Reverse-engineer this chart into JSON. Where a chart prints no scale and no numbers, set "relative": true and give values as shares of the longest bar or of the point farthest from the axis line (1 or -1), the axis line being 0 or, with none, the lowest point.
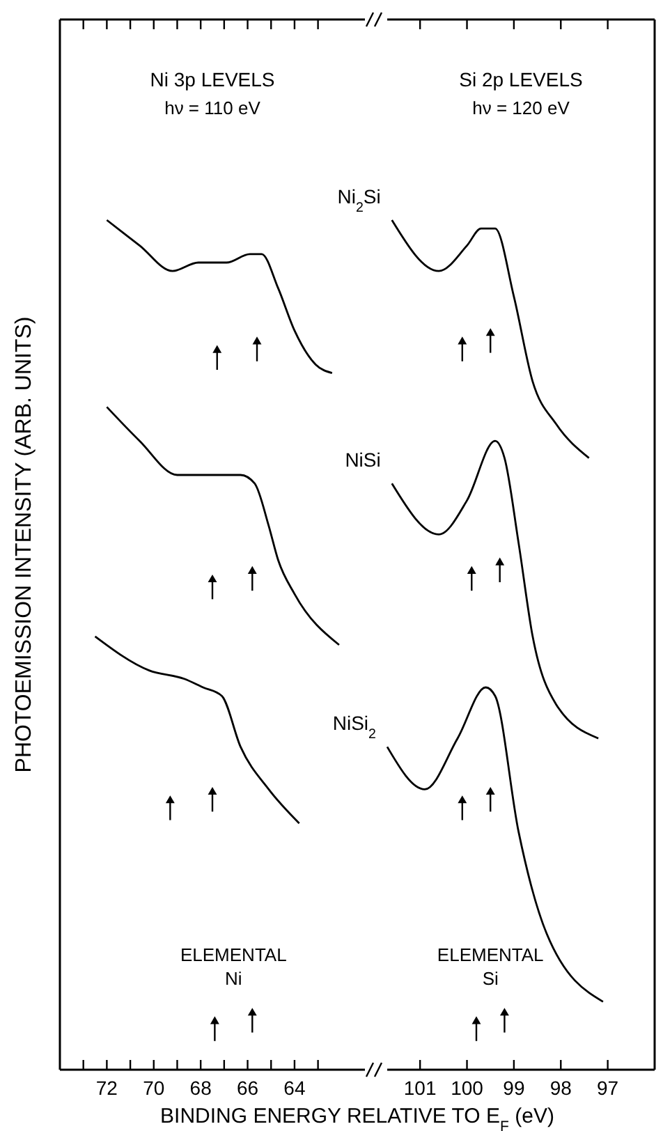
{
  "chart_data": [
    {
      "type": "line",
      "title": "Ni 3p LEVELS",
      "subtitle": "hν = 110 eV",
      "xlabel": "BINDING ENERGY RELATIVE TO E$_{F}$ (eV)",
      "ylabel": "PHOTOEMISSION INTENSITY (ARB. UNITS)",
      "relative": true,
      "legend": false,
      "grid": false,
      "marker": "none",
      "line_style": "solid",
      "tick_labels": "x",
      "xlim": [
        74,
        61
      ],
      "xticks": [
        {
          "value": 73,
          "label": null
        },
        72,
        {
          "value": 71,
          "label": null
        },
        70,
        {
          "value": 69,
          "label": null
        },
        68,
        {
          "value": 67,
          "label": null
        },
        66,
        {
          "value": 65,
          "label": null
        },
        64,
        {
          "value": 63,
          "label": null
        }
      ],
      "series": [
        {
          "color": "#000000",
          "x": [
            72.0,
            70.6,
            69.2,
            68.1,
            66.9,
            65.9,
            65.4,
            64.7,
            64.0,
            63.1,
            62.4
          ],
          "values": [
            1.0,
            0.97,
            0.94,
            0.95,
            0.95,
            0.96,
            0.96,
            0.92,
            0.87,
            0.83,
            0.82
          ]
        },
        {
          "color": "#000000",
          "x": [
            72.0,
            70.6,
            69.0,
            67.7,
            66.3,
            65.7,
            65.1,
            64.7,
            64.0,
            62.1
          ],
          "values": [
            0.78,
            0.74,
            0.7,
            0.7,
            0.7,
            0.69,
            0.64,
            0.6,
            0.56,
            0.5
          ]
        },
        {
          "color": "#000000",
          "x": [
            72.5,
            70.2,
            68.7,
            67.9,
            67.1,
            66.3,
            65.1,
            63.8
          ],
          "values": [
            0.51,
            0.47,
            0.46,
            0.45,
            0.44,
            0.38,
            0.33,
            0.29
          ]
        },
        {
          "type": "scatter",
          "marker": "triangle",
          "color": "#000000",
          "x": [
            67.3,
            65.6,
            67.5,
            65.8,
            69.3,
            67.5,
            67.4,
            65.8
          ],
          "values": [
            0.85,
            0.86,
            0.58,
            0.59,
            0.32,
            0.33,
            0.06,
            0.07
          ]
        }
      ],
      "annotations": [
        "ELEMENTAL Ni"
      ]
    },
    {
      "type": "line",
      "title": "Si 2p LEVELS",
      "subtitle": "hν = 120 eV",
      "relative": true,
      "legend": false,
      "grid": false,
      "marker": "none",
      "line_style": "solid",
      "tick_labels": "x",
      "xlim": [
        101.7,
        96
      ],
      "xticks": [
        101,
        100,
        99,
        98,
        97
      ],
      "series": [
        {
          "name": "Ni$_{2}$Si",
          "color": "#000000",
          "x": [
            101.6,
            100.6,
            100.0,
            99.7,
            99.4,
            99.0,
            98.6,
            98.1,
            97.4
          ],
          "values": [
            1.0,
            0.94,
            0.97,
            0.99,
            0.99,
            0.91,
            0.81,
            0.76,
            0.72
          ]
        },
        {
          "name": "NiSi",
          "color": "#000000",
          "x": [
            101.6,
            100.6,
            100.0,
            99.4,
            99.2,
            98.9,
            98.6,
            98.1,
            97.2
          ],
          "values": [
            0.69,
            0.63,
            0.67,
            0.74,
            0.72,
            0.62,
            0.51,
            0.43,
            0.39
          ]
        },
        {
          "name": "NiSi$_{2}$",
          "color": "#000000",
          "x": [
            101.7,
            100.9,
            100.2,
            99.6,
            99.4,
            98.9,
            98.3,
            97.1
          ],
          "values": [
            0.38,
            0.33,
            0.39,
            0.45,
            0.44,
            0.28,
            0.16,
            0.08
          ]
        },
        {
          "type": "scatter",
          "marker": "triangle",
          "color": "#000000",
          "x": [
            100.1,
            99.5,
            99.9,
            99.3,
            100.1,
            99.5,
            99.8,
            99.2
          ],
          "values": [
            0.86,
            0.87,
            0.59,
            0.6,
            0.32,
            0.33,
            0.06,
            0.07
          ]
        }
      ],
      "annotations": [
        "ELEMENTAL Si"
      ]
    }
  ]
}
